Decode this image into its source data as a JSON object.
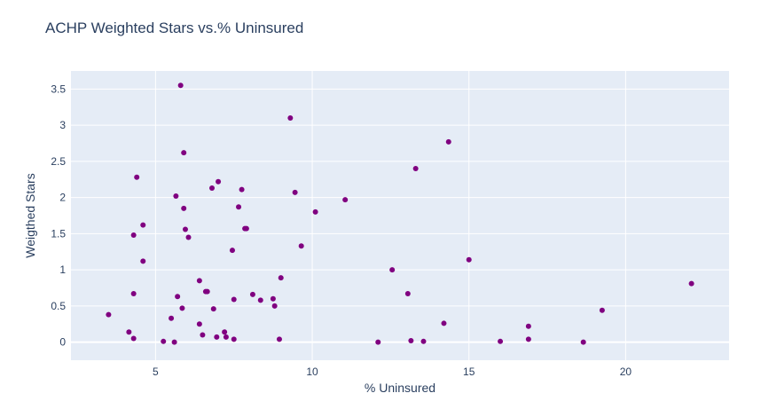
{
  "chart_data": {
    "type": "scatter",
    "title": "ACHP Weighted Stars vs.% Uninsured",
    "xlabel": "% Uninsured",
    "ylabel": "Weigthed Stars",
    "xlim": [
      2.3,
      23.3
    ],
    "ylim": [
      -0.25,
      3.75
    ],
    "xticks": [
      5,
      10,
      15,
      20
    ],
    "yticks": [
      0,
      0.5,
      1,
      1.5,
      2,
      2.5,
      3,
      3.5
    ],
    "ytick_labels": [
      "0",
      "0.5",
      "1",
      "1.5",
      "2",
      "2.5",
      "3",
      "3.5"
    ],
    "grid": true,
    "legend": "none",
    "colors": {
      "marker": "#800080",
      "plot_bg": "#e5ecf6",
      "grid": "#ffffff",
      "text": "#2a3f5f"
    },
    "series": [
      {
        "x": [
          3.5,
          4.15,
          4.3,
          4.3,
          4.3,
          4.4,
          4.6,
          4.6,
          5.25,
          5.5,
          5.6,
          5.65,
          5.7,
          5.8,
          5.85,
          5.9,
          5.9,
          5.95,
          6.05,
          6.4,
          6.4,
          6.5,
          6.6,
          6.65,
          6.8,
          6.85,
          6.95,
          7.0,
          7.2,
          7.25,
          7.45,
          7.5,
          7.5,
          7.65,
          7.75,
          7.85,
          7.9,
          8.1,
          8.35,
          8.75,
          8.8,
          8.95,
          9.0,
          9.3,
          9.45,
          9.65,
          10.1,
          11.05,
          12.1,
          12.55,
          13.05,
          13.15,
          13.3,
          13.55,
          14.2,
          14.35,
          15.0,
          16.0,
          16.9,
          16.9,
          18.65,
          19.25,
          22.1
        ],
        "y": [
          0.38,
          0.14,
          0.05,
          1.48,
          0.67,
          2.28,
          1.62,
          1.12,
          0.01,
          0.33,
          0.0,
          2.02,
          0.63,
          3.55,
          0.47,
          1.85,
          2.62,
          1.56,
          1.45,
          0.85,
          0.25,
          0.1,
          0.7,
          0.7,
          2.13,
          0.46,
          0.07,
          2.22,
          0.14,
          0.07,
          1.27,
          0.59,
          0.04,
          1.87,
          2.11,
          1.57,
          1.57,
          0.66,
          0.58,
          0.6,
          0.5,
          0.04,
          0.89,
          3.1,
          2.07,
          1.33,
          1.8,
          1.97,
          0.0,
          1.0,
          0.67,
          0.02,
          2.4,
          0.01,
          0.26,
          2.77,
          1.14,
          0.01,
          0.04,
          0.22,
          0.0,
          0.44,
          0.81
        ]
      }
    ]
  }
}
